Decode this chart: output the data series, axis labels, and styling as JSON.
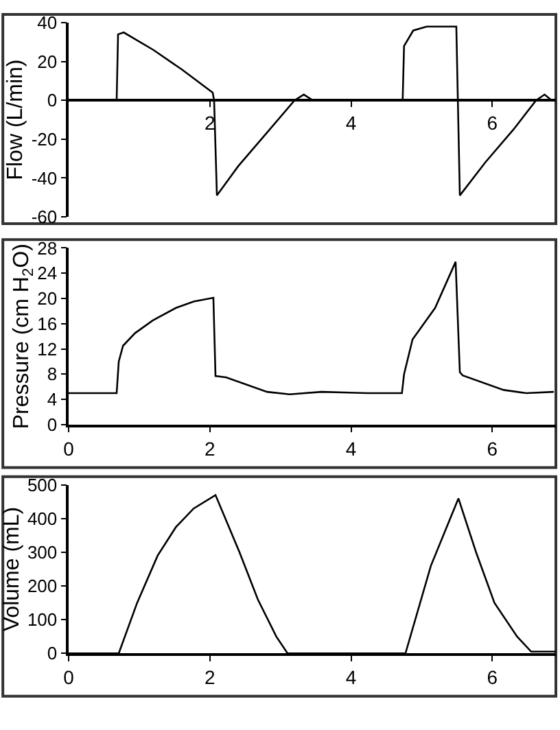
{
  "chart_data": [
    {
      "type": "line",
      "ylabel": "Flow (L/min)",
      "xlim": [
        0,
        6.9
      ],
      "xticks": [
        2,
        4,
        6
      ],
      "ylim": [
        -60,
        40
      ],
      "yticks": [
        -60,
        -40,
        -20,
        0,
        20,
        40
      ],
      "grid": false,
      "marker": "none",
      "line_style": "solid",
      "series": [
        {
          "color": "#000000",
          "x": [
            0,
            0.68,
            0.7,
            0.78,
            1.2,
            1.6,
            2.04,
            2.06,
            2.1,
            2.4,
            2.8,
            3.2,
            3.33,
            3.46,
            4.73,
            4.75,
            4.88,
            5.07,
            5.49,
            5.54,
            5.9,
            6.3,
            6.62,
            6.74,
            6.84,
            6.9
          ],
          "values": [
            0,
            0,
            34,
            35,
            26,
            16,
            4,
            0,
            -49,
            -34,
            -17,
            0,
            3,
            0,
            0,
            28,
            36,
            38,
            38,
            -49,
            -32,
            -15,
            0,
            3,
            0,
            0
          ]
        }
      ]
    },
    {
      "type": "line",
      "ylabel": "Pressure (cm H$_{2}$O)",
      "xlim": [
        0,
        6.9
      ],
      "xticks": [
        0,
        2,
        4,
        6
      ],
      "ylim": [
        0,
        28
      ],
      "yticks": [
        0,
        4,
        8,
        12,
        16,
        20,
        24,
        28
      ],
      "grid": false,
      "marker": "none",
      "line_style": "solid",
      "series": [
        {
          "color": "#000000",
          "x": [
            0,
            0.68,
            0.71,
            0.77,
            0.94,
            1.19,
            1.52,
            1.77,
            2.05,
            2.08,
            2.23,
            2.81,
            3.13,
            3.58,
            4.23,
            4.72,
            4.75,
            4.87,
            5.19,
            5.48,
            5.54,
            5.58,
            6.16,
            6.48,
            6.87
          ],
          "values": [
            5,
            5,
            10,
            12.5,
            14.5,
            16.5,
            18.5,
            19.5,
            20.1,
            7.7,
            7.5,
            5.2,
            4.8,
            5.2,
            5,
            5,
            8,
            13.5,
            18.5,
            25.8,
            8.3,
            7.8,
            5.5,
            5,
            5.2
          ]
        }
      ]
    },
    {
      "type": "line",
      "ylabel": "Volume (mL)",
      "xlim": [
        0,
        6.9
      ],
      "xticks": [
        0,
        2,
        4,
        6
      ],
      "ylim": [
        0,
        500
      ],
      "yticks": [
        0,
        100,
        200,
        300,
        400,
        500
      ],
      "grid": false,
      "marker": "none",
      "line_style": "solid",
      "series": [
        {
          "color": "#000000",
          "x": [
            0,
            0.71,
            0.97,
            1.26,
            1.52,
            1.77,
            2.08,
            2.42,
            2.68,
            2.94,
            3.1,
            4.77,
            5.13,
            5.52,
            5.77,
            6.03,
            6.35,
            6.55,
            6.9
          ],
          "values": [
            0,
            0,
            150,
            290,
            375,
            430,
            470,
            300,
            160,
            50,
            0,
            0,
            260,
            460,
            300,
            150,
            50,
            5,
            5
          ]
        }
      ]
    }
  ]
}
